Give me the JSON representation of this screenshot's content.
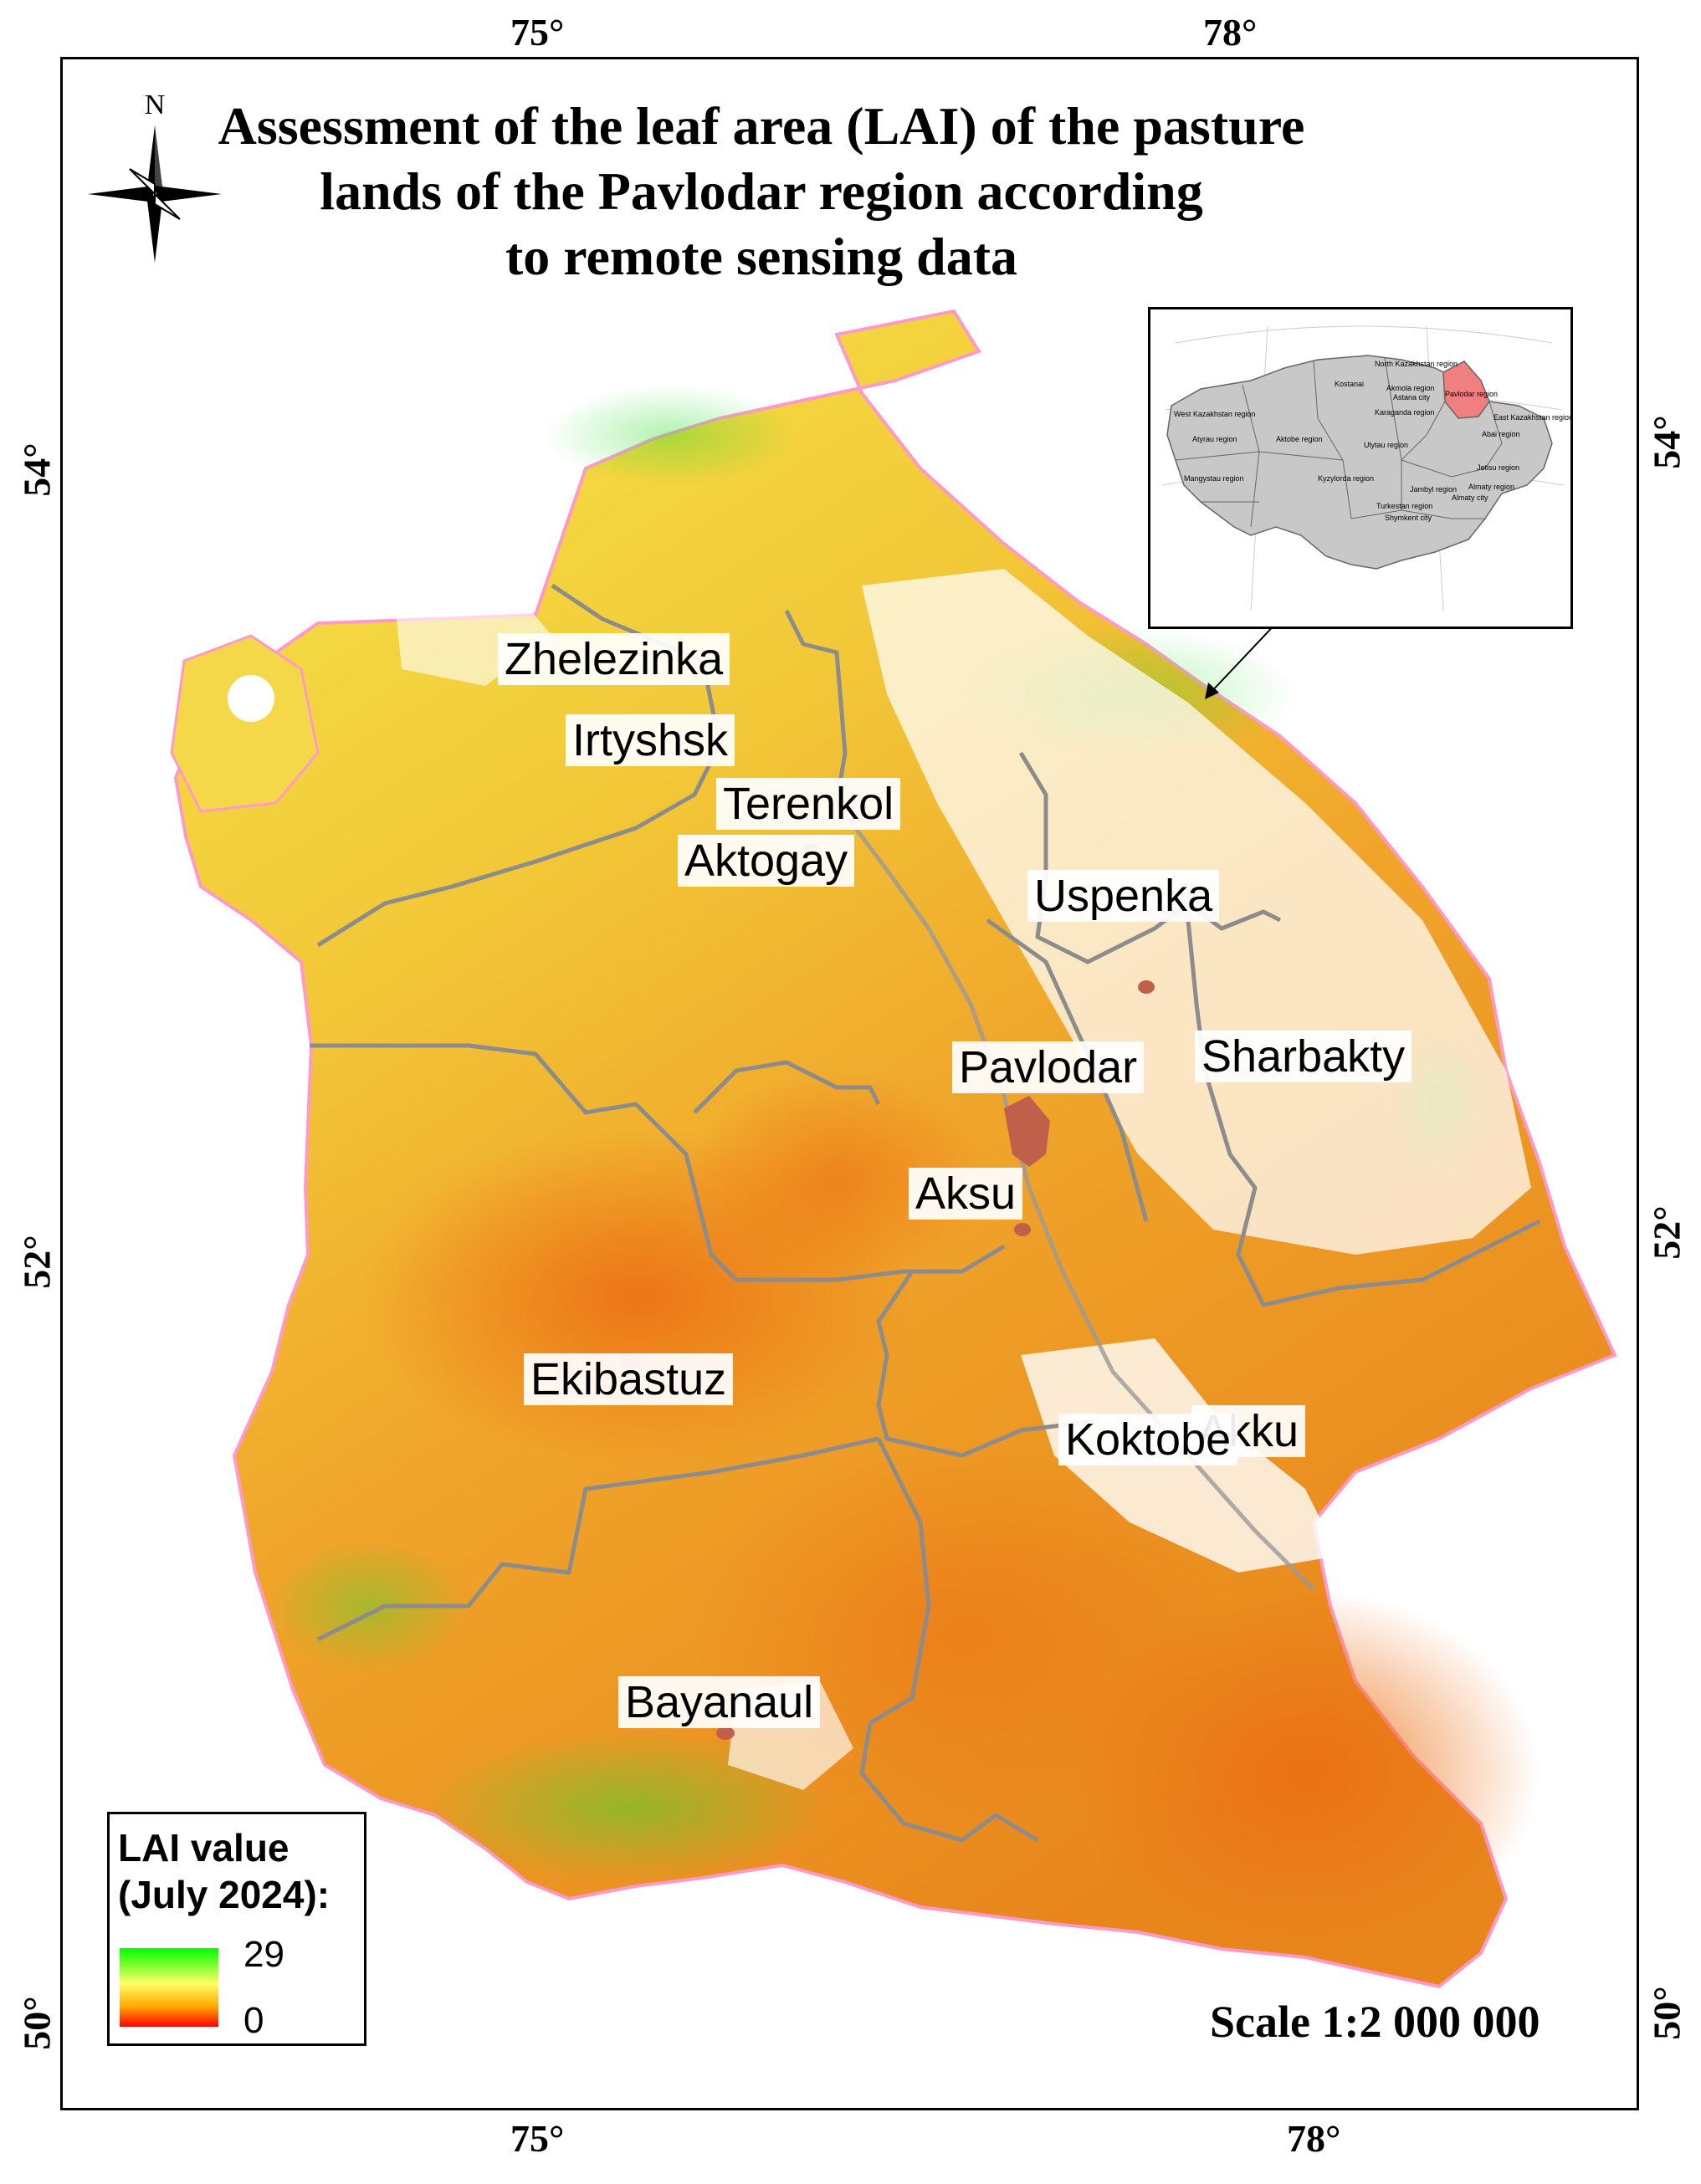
{
  "title": {
    "line1": "Assessment of the leaf area (LAI) of the pasture",
    "line2": "lands of the Pavlodar region according",
    "line3": "to remote sensing data"
  },
  "north_arrow": {
    "label": "N",
    "icon": "compass-rose-icon"
  },
  "graticule": {
    "top": [
      "75°",
      "78°"
    ],
    "bottom": [
      "75°",
      "78°"
    ],
    "left": [
      "54°",
      "52°",
      "50°"
    ],
    "right": [
      "54°",
      "52°",
      "50°"
    ]
  },
  "districts": {
    "zhelezinka": "Zhelezinka",
    "irtyshsk": "Irtyshsk",
    "terenkol": "Terenkol",
    "aktogay": "Aktogay",
    "uspenka": "Uspenka",
    "pavlodar": "Pavlodar",
    "sharbakty": "Sharbakty",
    "aksu": "Aksu",
    "ekibastuz": "Ekibastuz",
    "koktobe": "Koktobe",
    "akku": "Akku",
    "bayanaul": "Bayanaul"
  },
  "inset": {
    "highlight_color": "#f08080",
    "region_fill": "#c8c8c8",
    "regions": {
      "north_kazakhstan": "North Kazakhstan region",
      "kostanai": "Kostanai",
      "akmola": "Akmola region",
      "pavlodar": "Pavlodar region",
      "astana": "Astana city",
      "west_kazakhstan": "West Kazakhstan region",
      "karaganda": "Karaganda region",
      "east_kazakhstan": "East Kazakhstan region",
      "abai": "Abai region",
      "atyrau": "Atyrau region",
      "aktobe": "Aktobe region",
      "ulytau": "Ulytau region",
      "mangystau": "Mangystau region",
      "kyzylorda": "Kyzylorda region",
      "jetisu": "Jetisu region",
      "jambyl": "Jambyl region",
      "almaty_region": "Almaty region",
      "turkestan": "Turkestan region",
      "almaty_city": "Almaty city",
      "shymkent": "Shymkent city"
    }
  },
  "legend": {
    "title_line1": "LAI value",
    "title_line2": "(July 2024):",
    "max": "29",
    "min": "0",
    "colors": [
      "#00ff00",
      "#ffff66",
      "#ffa500",
      "#ff0000"
    ]
  },
  "scale": "Scale 1:2 000 000",
  "colors": {
    "boundary": "#ff99cc",
    "district_border": "#8c8c8c",
    "high_lai": "#33dd33",
    "mid_lai": "#f5e94a",
    "low_lai": "#f08a1a",
    "settlement": "#c0604a"
  }
}
